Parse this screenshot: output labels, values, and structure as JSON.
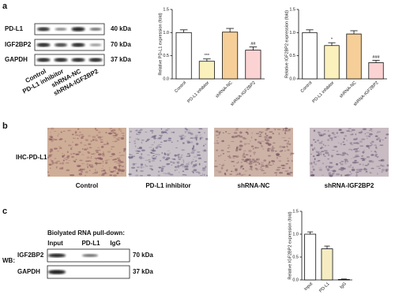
{
  "panel_labels": [
    "a",
    "b",
    "c"
  ],
  "blot_a": {
    "rows": [
      "PD-L1",
      "IGF2BP2",
      "GAPDH"
    ],
    "sizes": [
      "40 kDa",
      "70 kDa",
      "37 kDa"
    ],
    "lanes": [
      "Control",
      "PD-L1 inhibitor",
      "shRNA-NC",
      "shRNA-IGF2BP2"
    ]
  },
  "ihc": {
    "row_label": "IHC-PD-L1",
    "columns": [
      "Control",
      "PD-L1 inhibitor",
      "shRNA-NC",
      "shRNA-IGF2BP2"
    ]
  },
  "blot_c": {
    "prefix": "WB:",
    "header": "Biolyated RNA pull-down:",
    "lanes": [
      "Input",
      "PD-L1",
      "IgG"
    ],
    "rows": [
      "IGF2BP2",
      "GAPDH"
    ],
    "sizes": [
      "70 kDa",
      "37 kDa"
    ]
  },
  "chart_data": [
    {
      "type": "bar",
      "y_label": "Relative PD-L1 expression (fold)",
      "categories": [
        "Control",
        "PD-L1 inhibitor",
        "shRNA-NC",
        "shRNA-IGF2BP2"
      ],
      "values": [
        1.0,
        0.38,
        1.01,
        0.62
      ],
      "errors": [
        0.06,
        0.05,
        0.08,
        0.07
      ],
      "colors": [
        "#ffffff",
        "#fbf1bd",
        "#f6cf98",
        "#fbd3d3"
      ],
      "annotations": [
        null,
        "***",
        null,
        "##"
      ],
      "ylim": [
        0,
        1.5
      ],
      "yticks": [
        {
          "value": 0,
          "label": "0.0"
        },
        0.5,
        {
          "value": 1,
          "label": "1.0"
        },
        1.5
      ]
    },
    {
      "type": "bar",
      "y_label": "Relative IGF2BP2 expression (fold)",
      "categories": [
        "Control",
        "PD-L1 inhibitor",
        "shRNA-NC",
        "shRNA-IGF2BP2"
      ],
      "values": [
        1.0,
        0.72,
        0.97,
        0.35
      ],
      "errors": [
        0.06,
        0.06,
        0.07,
        0.05
      ],
      "colors": [
        "#ffffff",
        "#fbf1bd",
        "#f6cf98",
        "#fbd3d3"
      ],
      "annotations": [
        null,
        "*",
        null,
        "###"
      ],
      "ylim": [
        0,
        1.5
      ],
      "yticks": [
        {
          "value": 0,
          "label": "0.0"
        },
        0.5,
        {
          "value": 1,
          "label": "1.0"
        },
        1.5
      ]
    },
    {
      "type": "bar",
      "y_label": "Relative IGF2BP2 expression (fold)",
      "categories": [
        "Input",
        "PD-L1",
        "IgG"
      ],
      "values": [
        1.0,
        0.68,
        0.01
      ],
      "errors": [
        0.05,
        0.06,
        0.01
      ],
      "colors": [
        "#ffffff",
        "#f5ecc2",
        "#ffffff"
      ],
      "annotations": [
        null,
        null,
        null
      ],
      "ylim": [
        0,
        1.5
      ],
      "yticks": [
        {
          "value": 0,
          "label": "0.0"
        },
        0.5,
        {
          "value": 1,
          "label": "1.0"
        },
        1.5
      ]
    }
  ]
}
